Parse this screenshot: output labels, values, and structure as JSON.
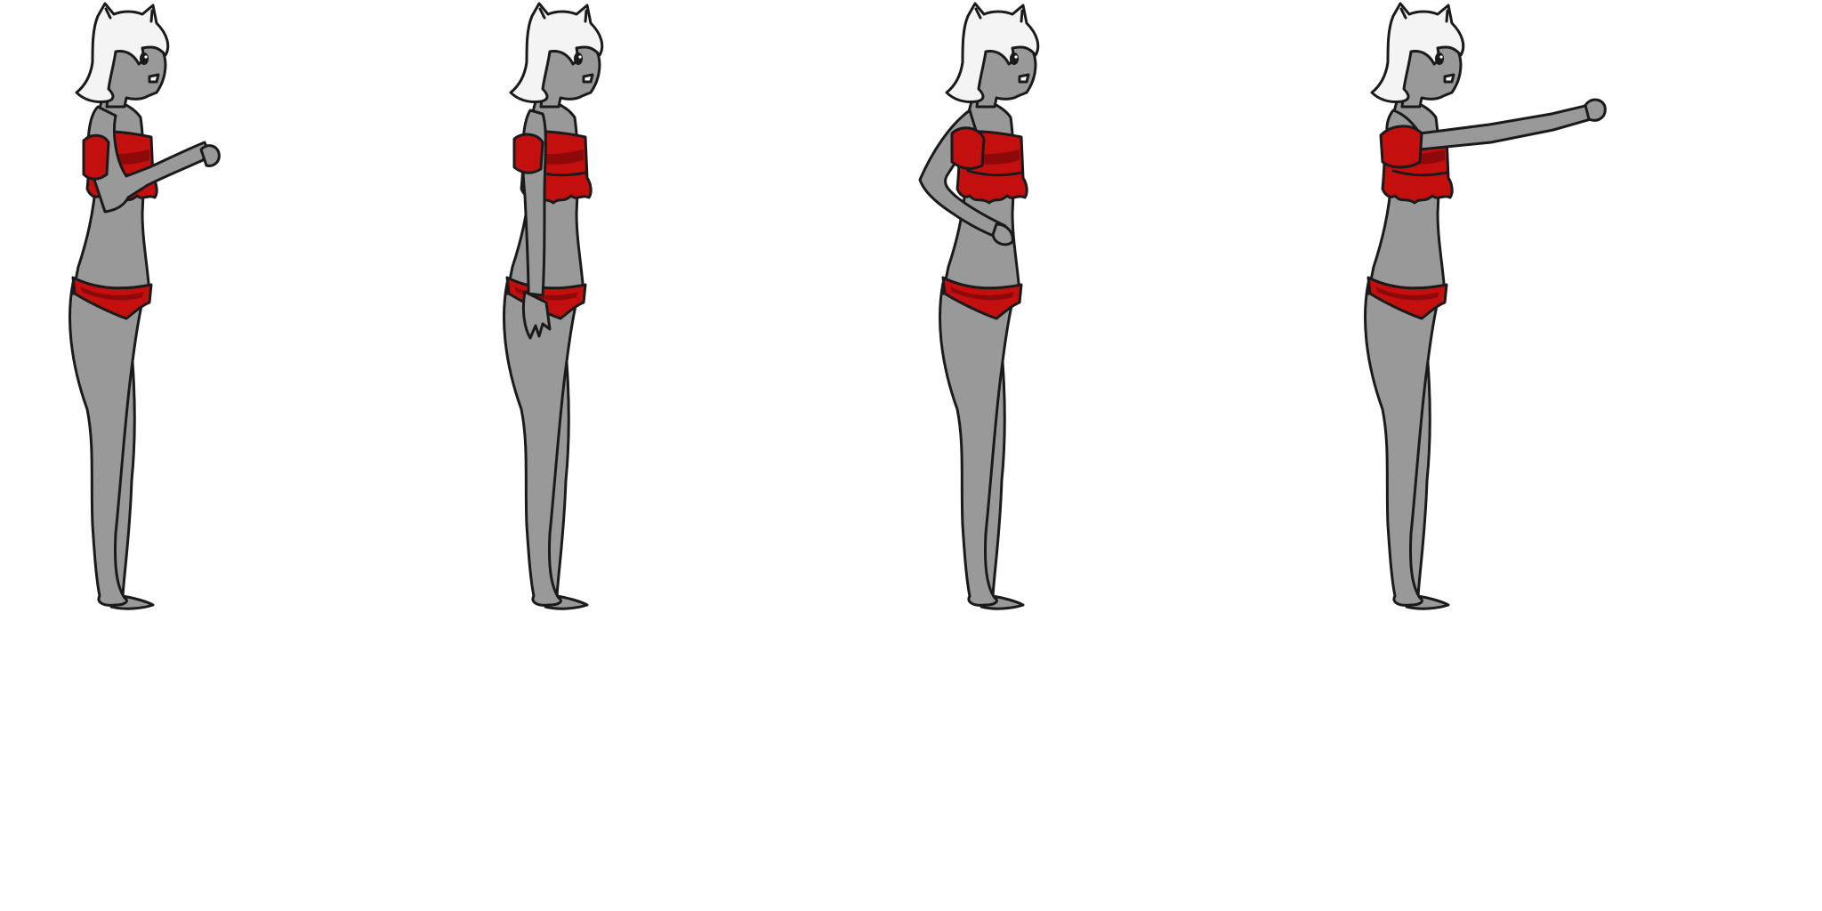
{
  "sprite_sheet": {
    "palette": {
      "background": "#ffffff",
      "skin": "#999999",
      "cloth": "#c40f0f",
      "cloth_dark": "#8e0a0a",
      "hair": "#f4f4f4",
      "outline": "#1a1a1a"
    },
    "frames": [
      {
        "pose": "arm-raised-forward-bent"
      },
      {
        "pose": "arm-down-relaxed"
      },
      {
        "pose": "hand-on-hip"
      },
      {
        "pose": "arm-extended-forward"
      }
    ]
  }
}
